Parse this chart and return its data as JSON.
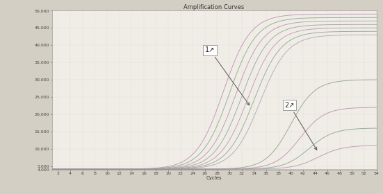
{
  "title": "Amplification Curves",
  "xlabel": "Cycles",
  "xlim": [
    1,
    54
  ],
  "ylim": [
    4000,
    50000
  ],
  "yticks": [
    50000,
    45000,
    40000,
    35000,
    30000,
    25000,
    20000,
    15000,
    10000,
    5000,
    4000
  ],
  "ytick_labels": [
    "50,000",
    "45,000",
    "40,000",
    "35,000",
    "30,000",
    "25,000",
    "20,000",
    "15,000",
    "10,000",
    "5,000",
    "4,000"
  ],
  "background_color": "#d4cfc4",
  "plot_bg": "#f0ede6",
  "grid_color": "#bbbbbb",
  "group1_curves": [
    {
      "midpoint": 29.0,
      "slope": 0.45,
      "ymin": 4100,
      "ymax": 49000,
      "color": "#c090b8"
    },
    {
      "midpoint": 30.0,
      "slope": 0.45,
      "ymin": 4100,
      "ymax": 48000,
      "color": "#90a890"
    },
    {
      "midpoint": 31.0,
      "slope": 0.45,
      "ymin": 4100,
      "ymax": 47000,
      "color": "#b898b0"
    },
    {
      "midpoint": 32.0,
      "slope": 0.45,
      "ymin": 4100,
      "ymax": 46000,
      "color": "#98a898"
    },
    {
      "midpoint": 33.0,
      "slope": 0.45,
      "ymin": 4100,
      "ymax": 45000,
      "color": "#c098b8"
    },
    {
      "midpoint": 34.0,
      "slope": 0.45,
      "ymin": 4100,
      "ymax": 44000,
      "color": "#90a890"
    },
    {
      "midpoint": 35.0,
      "slope": 0.45,
      "ymin": 4100,
      "ymax": 43000,
      "color": "#b0a8b8"
    }
  ],
  "group2_curves": [
    {
      "midpoint": 40.0,
      "slope": 0.5,
      "ymin": 4100,
      "ymax": 30000,
      "color": "#90a888"
    },
    {
      "midpoint": 41.5,
      "slope": 0.5,
      "ymin": 4100,
      "ymax": 22000,
      "color": "#c090b0"
    },
    {
      "midpoint": 43.0,
      "slope": 0.5,
      "ymin": 4100,
      "ymax": 16000,
      "color": "#88a890"
    },
    {
      "midpoint": 44.5,
      "slope": 0.5,
      "ymin": 4100,
      "ymax": 11000,
      "color": "#b898b0"
    }
  ],
  "title_fontsize": 6,
  "axis_fontsize": 5,
  "tick_fontsize": 4.5
}
